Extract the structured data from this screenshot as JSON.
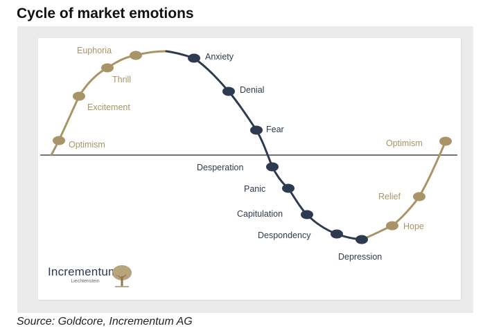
{
  "title": "Cycle of market emotions",
  "source": "Source: Goldcore, Incrementum AG",
  "brand": {
    "name": "Incrementum",
    "subtitle": "Liechtenstein"
  },
  "colors": {
    "gold": "#a89467",
    "navy": "#2d3a4f",
    "axis": "#222222"
  },
  "stages": [
    {
      "label": "Optimism",
      "phase": "positive",
      "node": true
    },
    {
      "label": "Excitement",
      "phase": "positive",
      "node": true
    },
    {
      "label": "Thrill",
      "phase": "positive",
      "node": true
    },
    {
      "label": "Euphoria",
      "phase": "positive",
      "node": true
    },
    {
      "label": "Anxiety",
      "phase": "negative",
      "node": true
    },
    {
      "label": "Denial",
      "phase": "negative",
      "node": true
    },
    {
      "label": "Fear",
      "phase": "negative",
      "node": true
    },
    {
      "label": "Desperation",
      "phase": "negative",
      "node": true
    },
    {
      "label": "Panic",
      "phase": "negative",
      "node": true
    },
    {
      "label": "Capitulation",
      "phase": "negative",
      "node": true
    },
    {
      "label": "Despondency",
      "phase": "negative",
      "node": true
    },
    {
      "label": "Depression",
      "phase": "negative",
      "node": true
    },
    {
      "label": "Hope",
      "phase": "positive",
      "node": true
    },
    {
      "label": "Relief",
      "phase": "positive",
      "node": true
    },
    {
      "label": "Optimism",
      "phase": "positive",
      "node": true
    }
  ]
}
